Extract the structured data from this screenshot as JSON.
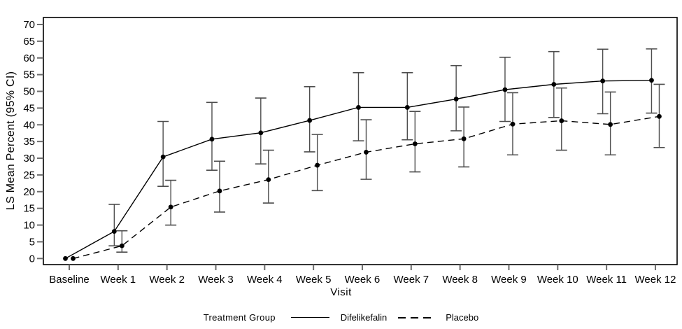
{
  "chart_data": {
    "type": "line",
    "title": "",
    "xlabel": "Visit",
    "ylabel": "LS Mean Percent (95% CI)",
    "ylim": [
      0,
      70
    ],
    "ytick_step": 5,
    "grid": false,
    "frame": true,
    "legend": {
      "title": "Treatment Group",
      "position": "bottom"
    },
    "categories": [
      "Baseline",
      "Week 1",
      "Week 2",
      "Week 3",
      "Week 4",
      "Week 5",
      "Week 6",
      "Week 7",
      "Week 8",
      "Week 9",
      "Week 10",
      "Week 11",
      "Week 12"
    ],
    "series": [
      {
        "name": "Difelikefalin",
        "line_style": "solid",
        "color": "#000000",
        "values": [
          0,
          8.1,
          30.4,
          35.7,
          37.6,
          41.3,
          45.2,
          45.2,
          47.7,
          50.5,
          52.1,
          53.1,
          53.3
        ],
        "ci_lower": [
          null,
          3.8,
          21.6,
          26.4,
          28.3,
          31.9,
          35.2,
          35.5,
          38.2,
          41.0,
          42.2,
          43.3,
          43.5
        ],
        "ci_upper": [
          null,
          16.2,
          41.0,
          46.7,
          48.0,
          51.4,
          55.6,
          55.6,
          57.7,
          60.2,
          61.9,
          62.6,
          62.7
        ]
      },
      {
        "name": "Placebo",
        "line_style": "dashed",
        "color": "#000000",
        "values": [
          0,
          3.8,
          15.4,
          20.2,
          23.6,
          27.9,
          31.8,
          34.3,
          35.8,
          40.2,
          41.2,
          40.1,
          42.5
        ],
        "ci_lower": [
          null,
          1.9,
          10.0,
          13.9,
          16.6,
          20.3,
          23.7,
          25.9,
          27.4,
          31.0,
          32.4,
          31.0,
          33.2
        ],
        "ci_upper": [
          null,
          8.3,
          23.4,
          29.1,
          32.4,
          37.1,
          41.5,
          44.0,
          45.3,
          49.6,
          51.0,
          49.8,
          52.1
        ]
      }
    ],
    "colors": {
      "axis": "#000000",
      "tick": "#6e6e6e",
      "errorbar": "#4d4d4d",
      "data": "#000000"
    }
  }
}
